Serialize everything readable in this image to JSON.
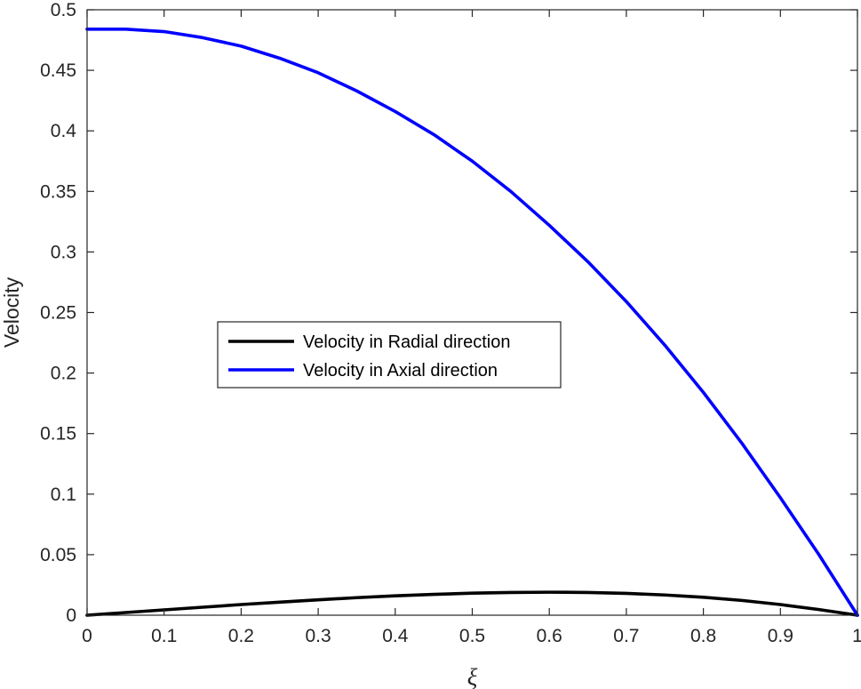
{
  "chart_data": {
    "type": "line",
    "xlabel": "ξ",
    "ylabel": "Velocity",
    "xlim": [
      0,
      1
    ],
    "ylim": [
      0,
      0.5
    ],
    "xticks": [
      0,
      0.1,
      0.2,
      0.3,
      0.4,
      0.5,
      0.6,
      0.7,
      0.8,
      0.9,
      1
    ],
    "xtick_labels": [
      "0",
      "0.1",
      "0.2",
      "0.3",
      "0.4",
      "0.5",
      "0.6",
      "0.7",
      "0.8",
      "0.9",
      "1"
    ],
    "yticks": [
      0,
      0.05,
      0.1,
      0.15,
      0.2,
      0.25,
      0.3,
      0.35,
      0.4,
      0.45,
      0.5
    ],
    "ytick_labels": [
      "0",
      "0.05",
      "0.1",
      "0.15",
      "0.2",
      "0.25",
      "0.3",
      "0.35",
      "0.4",
      "0.45",
      "0.5"
    ],
    "grid": false,
    "legend_position": "center-left",
    "x": [
      0,
      0.05,
      0.1,
      0.15,
      0.2,
      0.25,
      0.3,
      0.35,
      0.4,
      0.45,
      0.5,
      0.55,
      0.6,
      0.65,
      0.7,
      0.75,
      0.8,
      0.85,
      0.9,
      0.95,
      1
    ],
    "series": [
      {
        "name": "Velocity in Radial direction",
        "color": "#000000",
        "values": [
          0,
          0.0022,
          0.0044,
          0.0066,
          0.0088,
          0.0108,
          0.0127,
          0.0145,
          0.016,
          0.0172,
          0.0182,
          0.0188,
          0.019,
          0.0188,
          0.018,
          0.0167,
          0.0148,
          0.0122,
          0.0088,
          0.0047,
          0
        ]
      },
      {
        "name": "Velocity in Axial direction",
        "color": "#0000ff",
        "values": [
          0.484,
          0.484,
          0.482,
          0.477,
          0.47,
          0.46,
          0.448,
          0.433,
          0.416,
          0.397,
          0.375,
          0.35,
          0.322,
          0.292,
          0.259,
          0.223,
          0.184,
          0.142,
          0.097,
          0.05,
          0
        ]
      }
    ]
  }
}
